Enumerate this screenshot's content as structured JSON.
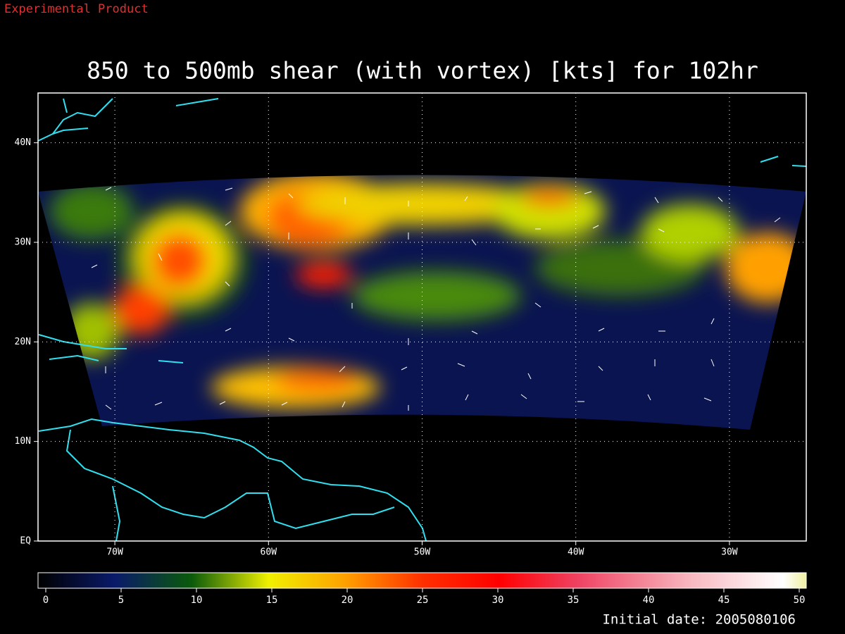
{
  "product_label": "Experimental Product",
  "title": "850 to 500mb shear (with vortex) [kts] for 102hr",
  "map": {
    "xlim": [
      -75,
      -25
    ],
    "ylim": [
      0,
      45
    ],
    "xticks": [
      {
        "value": -70,
        "label": "70W"
      },
      {
        "value": -60,
        "label": "60W"
      },
      {
        "value": -50,
        "label": "50W"
      },
      {
        "value": -40,
        "label": "40W"
      },
      {
        "value": -30,
        "label": "30W"
      }
    ],
    "yticks": [
      {
        "value": 0,
        "label": "EQ"
      },
      {
        "value": 10,
        "label": "10N"
      },
      {
        "value": 20,
        "label": "20N"
      },
      {
        "value": 30,
        "label": "30N"
      },
      {
        "value": 40,
        "label": "40N"
      }
    ]
  },
  "colorbar": {
    "lim": [
      0,
      50
    ],
    "ticks": [
      0,
      5,
      10,
      15,
      20,
      25,
      30,
      35,
      40,
      45,
      50
    ]
  },
  "initial_date": "Initial date: 2005080106"
}
